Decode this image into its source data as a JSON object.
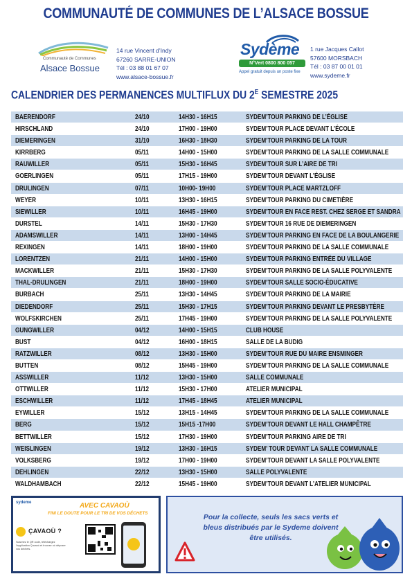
{
  "header": {
    "title": "COMMUNAUTÉ DE COMMUNES DE L’ALSACE BOSSUE"
  },
  "ccab": {
    "logo_small": "Communauté de Communes",
    "logo_big": "Alsace Bossue",
    "address": [
      "14 rue Vincent d’Indy",
      "67260 SARRE-UNION",
      "Tél : 03 88 01 67 07",
      "www.alsace-bossue.fr"
    ]
  },
  "sydeme": {
    "logo_name": "Sydème",
    "green_band": "N°Vert 0800 800 057",
    "tagline": "Appel gratuit depuis un poste fixe",
    "address": [
      "1 rue Jacques Callot",
      "57600 MORSBACH",
      "Tél : 03 87 00 01 01",
      "www.sydeme.fr"
    ]
  },
  "calendar": {
    "title_main": "CALENDRIER DES PERMANENCES MULTIFLUX DU 2",
    "title_sup": "E",
    "title_end": " SEMESTRE 2025",
    "rows": [
      {
        "town": "BAERENDORF",
        "date": "24/10",
        "time": "14H30 - 16H15",
        "place": "SYDEM’TOUR PARKING DE L’ÉGLISE"
      },
      {
        "town": "HIRSCHLAND",
        "date": "24/10",
        "time": "17H00 - 19H00",
        "place": "SYDEM’TOUR PLACE DEVANT L’ÉCOLE"
      },
      {
        "town": "DIEMERINGEN",
        "date": "31/10",
        "time": "16H30 - 18H30",
        "place": "SYDEM’TOUR PARKING DE LA TOUR"
      },
      {
        "town": "KIRRBERG",
        "date": "05/11",
        "time": "14H00 - 15H00",
        "place": "SYDEM’TOUR PARKING DE LA SALLE COMMUNALE"
      },
      {
        "town": "RAUWILLER",
        "date": "05/11",
        "time": "15H30 - 16H45",
        "place": "SYDEM’TOUR SUR L’AIRE DE TRI"
      },
      {
        "town": "GOERLINGEN",
        "date": "05/11",
        "time": "17H15 - 19H00",
        "place": "SYDEM’TOUR DEVANT L’ÉGLISE"
      },
      {
        "town": "DRULINGEN",
        "date": "07/11",
        "time": "10H00- 19H00",
        "place": "SYDEM’TOUR PLACE MARTZLOFF"
      },
      {
        "town": "WEYER",
        "date": "10/11",
        "time": "13H30 - 16H15",
        "place": "SYDEM’TOUR PARKING DU CIMETIÈRE"
      },
      {
        "town": "SIEWILLER",
        "date": "10/11",
        "time": "16H45 - 19H00",
        "place": "SYDEM’TOUR EN FACE REST. CHEZ SERGE ET SANDRA"
      },
      {
        "town": "DURSTEL",
        "date": "14/11",
        "time": "15H30 - 17H30",
        "place": "SYDEM’TOUR 16 RUE DE DIEMERINGEN"
      },
      {
        "town": "ADAMSWILLER",
        "date": "14/11",
        "time": "13H00 - 14H45",
        "place": "SYDEM’TOUR PARKING EN FACE DE LA BOULANGERIE"
      },
      {
        "town": "REXINGEN",
        "date": "14/11",
        "time": "18H00 - 19H00",
        "place": "SYDEM’TOUR PARKING DE LA SALLE COMMUNALE"
      },
      {
        "town": "LORENTZEN",
        "date": "21/11",
        "time": "14H00 - 15H00",
        "place": "SYDEM’TOUR PARKING ENTRÉE DU VILLAGE"
      },
      {
        "town": "MACKWILLER",
        "date": "21/11",
        "time": "15H30 - 17H30",
        "place": "SYDEM’TOUR PARKING DE LA SALLE POLYVALENTE"
      },
      {
        "town": "THAL-DRULINGEN",
        "date": "21/11",
        "time": "18H00 - 19H00",
        "place": "SYDEM’TOUR SALLE SOCIO-ÉDUCATIVE"
      },
      {
        "town": "BURBACH",
        "date": "25/11",
        "time": "13H30 - 14H45",
        "place": "SYDEM’TOUR PARKING DE LA MAIRIE"
      },
      {
        "town": "DIEDENDORF",
        "date": "25/11",
        "time": "15H30 - 17H15",
        "place": "SYDEM’TOUR PARKING DEVANT LE PRESBYTÈRE"
      },
      {
        "town": "WOLFSKIRCHEN",
        "date": "25/11",
        "time": "17H45 - 19H00",
        "place": "SYDEM’TOUR PARKING DE LA SALLE POLYVALENTE"
      },
      {
        "town": "GUNGWILLER",
        "date": "04/12",
        "time": "14H00 - 15H15",
        "place": "CLUB HOUSE"
      },
      {
        "town": "BUST",
        "date": "04/12",
        "time": "16H00 - 18H15",
        "place": "SALLE DE LA BUDIG"
      },
      {
        "town": "RATZWILLER",
        "date": "08/12",
        "time": "13H30 - 15H00",
        "place": "SYDEM’TOUR RUE DU MAIRE ENSMINGER"
      },
      {
        "town": "BUTTEN",
        "date": "08/12",
        "time": "15H45 - 19H00",
        "place": "SYDEM’TOUR PARKING DE LA SALLE COMMUNALE"
      },
      {
        "town": "ASSWILLER",
        "date": "11/12",
        "time": "13H30 - 15H00",
        "place": "SALLE COMMUNALE"
      },
      {
        "town": "OTTWILLER",
        "date": "11/12",
        "time": "15H30 - 17H00",
        "place": "ATELIER MUNICIPAL"
      },
      {
        "town": "ESCHWILLER",
        "date": "11/12",
        "time": "17H45 - 18H45",
        "place": "ATELIER MUNICIPAL"
      },
      {
        "town": "EYWILLER",
        "date": "15/12",
        "time": "13H15 - 14H45",
        "place": "SYDEM’TOUR PARKING DE LA SALLE COMMUNALE"
      },
      {
        "town": "BERG",
        "date": "15/12",
        "time": "15H15 -17H00",
        "place": "SYDEM’TOUR DEVANT LE HALL CHAMPÊTRE"
      },
      {
        "town": "BETTWILLER",
        "date": "15/12",
        "time": "17H30 - 19H00",
        "place": "SYDEM’TOUR PARKING AIRE DE TRI"
      },
      {
        "town": "WEISLINGEN",
        "date": "19/12",
        "time": "13H30 - 16H15",
        "place": "SYDEM’ TOUR DEVANT LA SALLE COMMUNALE"
      },
      {
        "town": "VOLKSBERG",
        "date": "19/12",
        "time": "17H00 - 19H00",
        "place": "SYDEM’TOUR DEVANT LA SALLE POLYVALENTE"
      },
      {
        "town": "DEHLINGEN",
        "date": "22/12",
        "time": "13H30 - 15H00",
        "place": "SALLE POLYVALENTE"
      },
      {
        "town": "WALDHAMBACH",
        "date": "22/12",
        "time": "15H45 - 19H00",
        "place": "SYDEM’TOUR DEVANT L’ATELIER MUNICIPAL"
      }
    ]
  },
  "cavaou": {
    "logo": "sydeme",
    "title": "AVEC CAVAOÙ",
    "subtitle": "FINI LE DOUTE POUR LE TRI DE VOS DÉCHETS",
    "brand": "ÇAVAOÙ ?",
    "small_text": "Scannez le QR code, téléchargez l’application Çavaoù et trouvez où déposer vos déchets."
  },
  "notice": {
    "text": "Pour la collecte, seuls les sacs verts et bleus distribués par le Sydeme doivent être utilisés.",
    "warning_icon": "warning-triangle-icon",
    "mascots": "green-blue-bag-mascots"
  },
  "colors": {
    "title_blue": "#1f3c8f",
    "row_stripe": "#c9d9eb",
    "accent_yellow": "#f3a91b",
    "notice_bg": "#dfe8f6",
    "sydeme_green": "#2e9a3a"
  }
}
